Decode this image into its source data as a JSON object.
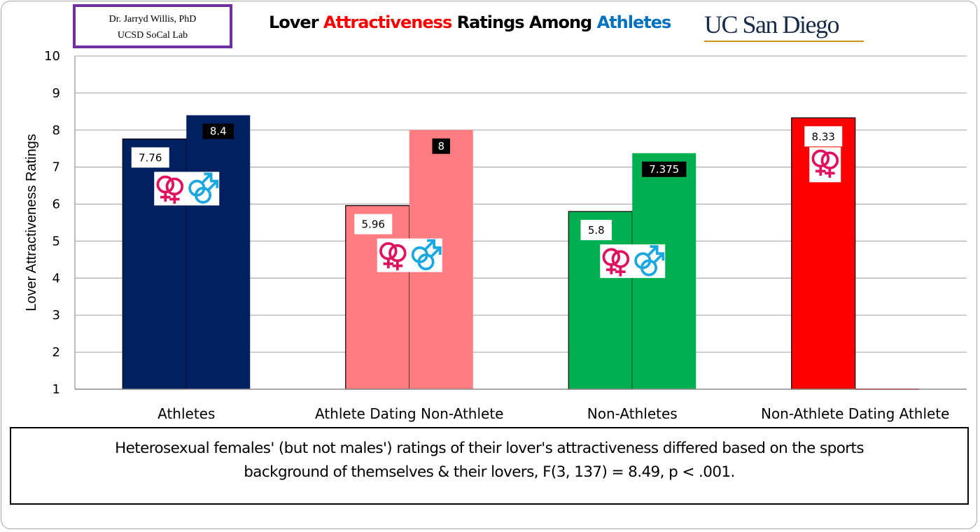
{
  "credit": {
    "line1": "Dr. Jarryd Willis, PhD",
    "line2": "UCSD SoCal Lab",
    "border_color": "#7030a0"
  },
  "title": {
    "part1": "Lover ",
    "part2": "Attractiveness",
    "part3": " Ratings Among ",
    "part4": "Athletes",
    "colors": {
      "part2": "#ff0000",
      "part4": "#0070c0"
    }
  },
  "logo": {
    "text": "UC San Diego",
    "color": "#182b49",
    "underline_color": "#c69214"
  },
  "note": {
    "line1": "Heterosexual females' (but not males') ratings of their lover's attractiveness differed based on the sports",
    "line2": "background of themselves & their lovers, F(3, 137) = 8.49, p < .001."
  },
  "chart_data": {
    "type": "bar",
    "title": "Lover Attractiveness Ratings Among Athletes",
    "xlabel": "",
    "ylabel": "Lover Attractiveness Ratings",
    "ylim": [
      1,
      10
    ],
    "yticks": [
      1,
      2,
      3,
      4,
      5,
      6,
      7,
      8,
      9,
      10
    ],
    "grid": true,
    "legend": "none",
    "categories": [
      "Athletes",
      "Athlete Dating Non-Athlete",
      "Non-Athletes",
      "Non-Athlete Dating Athlete"
    ],
    "series": [
      {
        "name": "Females",
        "symbol": "female-female-icon",
        "values": [
          7.76,
          5.96,
          5.8,
          8.33
        ],
        "labels": [
          "7.76",
          "5.96",
          "5.8",
          "8.33"
        ],
        "outlined": true
      },
      {
        "name": "Males",
        "symbol": "male-male-icon",
        "values": [
          8.4,
          8.0,
          7.375,
          1.0
        ],
        "labels": [
          "8.4",
          "8",
          "7.375",
          ""
        ],
        "outlined": false
      }
    ],
    "category_colors": [
      "#002060",
      "#ff7c80",
      "#00b050",
      "#ff0000"
    ],
    "gender_icons_shown": [
      [
        "female-female-icon",
        "male-male-icon"
      ],
      [
        "female-female-icon",
        "male-male-icon"
      ],
      [
        "female-female-icon",
        "male-male-icon"
      ],
      [
        "female-female-icon"
      ]
    ],
    "symbol_colors": {
      "female": "#e0115f",
      "male": "#1ba8e0"
    }
  }
}
